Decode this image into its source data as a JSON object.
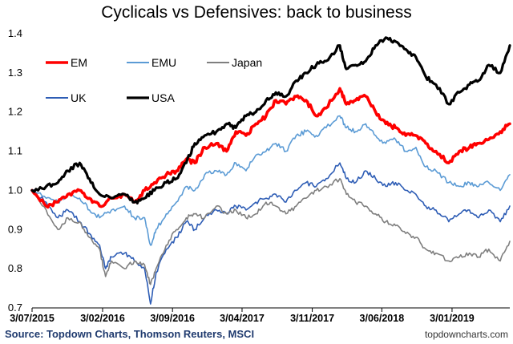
{
  "chart_data": {
    "type": "line",
    "title": "Cyclicals vs Defensives: back to business",
    "xlabel": "",
    "ylabel": "",
    "ylim": [
      0.7,
      1.4
    ],
    "yticks": [
      "0.7",
      "0.8",
      "0.9",
      "1.0",
      "1.1",
      "1.2",
      "1.3",
      "1.4"
    ],
    "xlim": [
      "2015-07-03",
      "2019-06-28"
    ],
    "xticks": [
      {
        "date": "2015-07-03",
        "label": "3/07/2015"
      },
      {
        "date": "2016-02-03",
        "label": "3/02/2016"
      },
      {
        "date": "2016-09-03",
        "label": "3/09/2016"
      },
      {
        "date": "2017-04-03",
        "label": "3/04/2017"
      },
      {
        "date": "2017-11-03",
        "label": "3/11/2017"
      },
      {
        "date": "2018-06-03",
        "label": "3/06/2018"
      },
      {
        "date": "2019-01-03",
        "label": "3/01/2019"
      }
    ],
    "grid": false,
    "legend_position": "top-left",
    "series": [
      {
        "name": "EM",
        "color": "#ff0000",
        "width": 3.6,
        "points": [
          [
            "2015-07-03",
            1.0
          ],
          [
            "2015-08-15",
            0.96
          ],
          [
            "2015-09-20",
            0.97
          ],
          [
            "2015-10-20",
            0.99
          ],
          [
            "2015-11-25",
            1.0
          ],
          [
            "2015-12-25",
            0.98
          ],
          [
            "2016-01-25",
            0.96
          ],
          [
            "2016-03-01",
            0.98
          ],
          [
            "2016-04-10",
            0.99
          ],
          [
            "2016-05-10",
            0.97
          ],
          [
            "2016-06-10",
            1.0
          ],
          [
            "2016-07-10",
            1.02
          ],
          [
            "2016-08-15",
            1.04
          ],
          [
            "2016-09-15",
            1.05
          ],
          [
            "2016-10-15",
            1.08
          ],
          [
            "2016-11-10",
            1.07
          ],
          [
            "2016-12-10",
            1.11
          ],
          [
            "2017-01-15",
            1.12
          ],
          [
            "2017-02-15",
            1.1
          ],
          [
            "2017-03-15",
            1.15
          ],
          [
            "2017-04-15",
            1.14
          ],
          [
            "2017-05-15",
            1.17
          ],
          [
            "2017-06-15",
            1.19
          ],
          [
            "2017-07-15",
            1.23
          ],
          [
            "2017-08-15",
            1.22
          ],
          [
            "2017-09-15",
            1.24
          ],
          [
            "2017-10-15",
            1.23
          ],
          [
            "2017-11-15",
            1.19
          ],
          [
            "2017-12-15",
            1.21
          ],
          [
            "2018-01-26",
            1.26
          ],
          [
            "2018-02-15",
            1.22
          ],
          [
            "2018-03-15",
            1.23
          ],
          [
            "2018-04-15",
            1.24
          ],
          [
            "2018-05-15",
            1.2
          ],
          [
            "2018-06-15",
            1.17
          ],
          [
            "2018-07-15",
            1.16
          ],
          [
            "2018-08-15",
            1.14
          ],
          [
            "2018-09-15",
            1.14
          ],
          [
            "2018-10-15",
            1.12
          ],
          [
            "2018-11-15",
            1.1
          ],
          [
            "2018-12-24",
            1.07
          ],
          [
            "2019-01-25",
            1.1
          ],
          [
            "2019-02-25",
            1.11
          ],
          [
            "2019-03-25",
            1.12
          ],
          [
            "2019-04-25",
            1.13
          ],
          [
            "2019-05-30",
            1.15
          ],
          [
            "2019-06-28",
            1.17
          ]
        ]
      },
      {
        "name": "EMU",
        "color": "#5b9bd5",
        "width": 1.6,
        "points": [
          [
            "2015-07-03",
            1.0
          ],
          [
            "2015-08-15",
            0.98
          ],
          [
            "2015-09-20",
            0.97
          ],
          [
            "2015-10-20",
            0.99
          ],
          [
            "2015-11-25",
            0.98
          ],
          [
            "2015-12-25",
            0.95
          ],
          [
            "2016-01-25",
            0.93
          ],
          [
            "2016-03-01",
            0.95
          ],
          [
            "2016-04-10",
            0.96
          ],
          [
            "2016-05-10",
            0.93
          ],
          [
            "2016-06-10",
            0.93
          ],
          [
            "2016-06-28",
            0.86
          ],
          [
            "2016-07-15",
            0.9
          ],
          [
            "2016-08-15",
            0.94
          ],
          [
            "2016-09-15",
            0.97
          ],
          [
            "2016-10-15",
            1.01
          ],
          [
            "2016-11-10",
            1.0
          ],
          [
            "2016-12-10",
            1.04
          ],
          [
            "2017-01-15",
            1.05
          ],
          [
            "2017-02-15",
            1.04
          ],
          [
            "2017-03-15",
            1.07
          ],
          [
            "2017-04-15",
            1.05
          ],
          [
            "2017-05-15",
            1.09
          ],
          [
            "2017-06-15",
            1.1
          ],
          [
            "2017-07-15",
            1.12
          ],
          [
            "2017-08-15",
            1.1
          ],
          [
            "2017-09-15",
            1.14
          ],
          [
            "2017-10-15",
            1.15
          ],
          [
            "2017-11-15",
            1.14
          ],
          [
            "2017-12-15",
            1.16
          ],
          [
            "2018-01-26",
            1.19
          ],
          [
            "2018-02-15",
            1.16
          ],
          [
            "2018-03-15",
            1.15
          ],
          [
            "2018-04-15",
            1.17
          ],
          [
            "2018-05-15",
            1.14
          ],
          [
            "2018-06-15",
            1.12
          ],
          [
            "2018-07-15",
            1.13
          ],
          [
            "2018-08-15",
            1.1
          ],
          [
            "2018-09-15",
            1.11
          ],
          [
            "2018-10-15",
            1.06
          ],
          [
            "2018-11-15",
            1.05
          ],
          [
            "2018-12-24",
            1.02
          ],
          [
            "2019-01-25",
            1.01
          ],
          [
            "2019-02-25",
            1.02
          ],
          [
            "2019-03-25",
            1.01
          ],
          [
            "2019-04-25",
            1.02
          ],
          [
            "2019-05-30",
            1.0
          ],
          [
            "2019-06-28",
            1.04
          ]
        ]
      },
      {
        "name": "Japan",
        "color": "#7f7f7f",
        "width": 1.6,
        "points": [
          [
            "2015-07-03",
            1.0
          ],
          [
            "2015-08-15",
            0.95
          ],
          [
            "2015-09-20",
            0.9
          ],
          [
            "2015-10-20",
            0.93
          ],
          [
            "2015-11-25",
            0.92
          ],
          [
            "2015-12-25",
            0.88
          ],
          [
            "2016-01-25",
            0.85
          ],
          [
            "2016-02-12",
            0.78
          ],
          [
            "2016-03-01",
            0.82
          ],
          [
            "2016-04-10",
            0.8
          ],
          [
            "2016-05-10",
            0.82
          ],
          [
            "2016-06-10",
            0.81
          ],
          [
            "2016-06-28",
            0.76
          ],
          [
            "2016-07-15",
            0.8
          ],
          [
            "2016-08-15",
            0.86
          ],
          [
            "2016-09-15",
            0.9
          ],
          [
            "2016-10-15",
            0.93
          ],
          [
            "2016-11-10",
            0.94
          ],
          [
            "2016-12-10",
            0.93
          ],
          [
            "2017-01-15",
            0.96
          ],
          [
            "2017-02-15",
            0.94
          ],
          [
            "2017-03-15",
            0.95
          ],
          [
            "2017-04-15",
            0.93
          ],
          [
            "2017-05-15",
            0.94
          ],
          [
            "2017-06-15",
            0.97
          ],
          [
            "2017-07-15",
            0.96
          ],
          [
            "2017-08-15",
            0.94
          ],
          [
            "2017-09-15",
            0.96
          ],
          [
            "2017-10-15",
            0.98
          ],
          [
            "2017-11-15",
            1.0
          ],
          [
            "2017-12-15",
            1.01
          ],
          [
            "2018-01-26",
            1.03
          ],
          [
            "2018-02-15",
            0.99
          ],
          [
            "2018-03-15",
            0.97
          ],
          [
            "2018-04-15",
            0.96
          ],
          [
            "2018-05-15",
            0.94
          ],
          [
            "2018-06-15",
            0.92
          ],
          [
            "2018-07-15",
            0.91
          ],
          [
            "2018-08-15",
            0.89
          ],
          [
            "2018-09-15",
            0.88
          ],
          [
            "2018-10-15",
            0.85
          ],
          [
            "2018-11-15",
            0.84
          ],
          [
            "2018-12-24",
            0.82
          ],
          [
            "2019-01-25",
            0.83
          ],
          [
            "2019-02-25",
            0.84
          ],
          [
            "2019-03-25",
            0.83
          ],
          [
            "2019-04-25",
            0.85
          ],
          [
            "2019-05-30",
            0.82
          ],
          [
            "2019-06-28",
            0.87
          ]
        ]
      },
      {
        "name": "UK",
        "color": "#2e5db5",
        "width": 1.6,
        "points": [
          [
            "2015-07-03",
            1.0
          ],
          [
            "2015-08-15",
            0.97
          ],
          [
            "2015-09-20",
            0.93
          ],
          [
            "2015-10-20",
            0.95
          ],
          [
            "2015-11-25",
            0.92
          ],
          [
            "2015-12-25",
            0.89
          ],
          [
            "2016-01-25",
            0.86
          ],
          [
            "2016-02-12",
            0.8
          ],
          [
            "2016-03-01",
            0.83
          ],
          [
            "2016-04-10",
            0.84
          ],
          [
            "2016-05-10",
            0.82
          ],
          [
            "2016-06-10",
            0.8
          ],
          [
            "2016-06-28",
            0.71
          ],
          [
            "2016-07-15",
            0.79
          ],
          [
            "2016-08-15",
            0.85
          ],
          [
            "2016-09-15",
            0.88
          ],
          [
            "2016-10-15",
            0.92
          ],
          [
            "2016-11-10",
            0.9
          ],
          [
            "2016-12-10",
            0.93
          ],
          [
            "2017-01-15",
            0.95
          ],
          [
            "2017-02-15",
            0.94
          ],
          [
            "2017-03-15",
            0.96
          ],
          [
            "2017-04-15",
            0.95
          ],
          [
            "2017-05-15",
            0.97
          ],
          [
            "2017-06-15",
            0.98
          ],
          [
            "2017-07-15",
            0.99
          ],
          [
            "2017-08-15",
            0.97
          ],
          [
            "2017-09-15",
            1.0
          ],
          [
            "2017-10-15",
            1.02
          ],
          [
            "2017-11-15",
            1.01
          ],
          [
            "2017-12-15",
            1.03
          ],
          [
            "2018-01-26",
            1.07
          ],
          [
            "2018-02-15",
            1.03
          ],
          [
            "2018-03-15",
            1.02
          ],
          [
            "2018-04-15",
            1.05
          ],
          [
            "2018-05-15",
            1.03
          ],
          [
            "2018-06-15",
            1.01
          ],
          [
            "2018-07-15",
            1.02
          ],
          [
            "2018-08-15",
            1.0
          ],
          [
            "2018-09-15",
            0.99
          ],
          [
            "2018-10-15",
            0.96
          ],
          [
            "2018-11-15",
            0.95
          ],
          [
            "2018-12-24",
            0.92
          ],
          [
            "2019-01-25",
            0.94
          ],
          [
            "2019-02-25",
            0.95
          ],
          [
            "2019-03-25",
            0.93
          ],
          [
            "2019-04-25",
            0.95
          ],
          [
            "2019-05-30",
            0.92
          ],
          [
            "2019-06-28",
            0.96
          ]
        ]
      },
      {
        "name": "USA",
        "color": "#000000",
        "width": 3.2,
        "points": [
          [
            "2015-07-03",
            1.0
          ],
          [
            "2015-08-15",
            1.01
          ],
          [
            "2015-09-20",
            1.02
          ],
          [
            "2015-10-20",
            1.05
          ],
          [
            "2015-11-25",
            1.07
          ],
          [
            "2015-12-25",
            1.03
          ],
          [
            "2016-01-25",
            0.99
          ],
          [
            "2016-03-01",
            0.98
          ],
          [
            "2016-04-10",
            0.99
          ],
          [
            "2016-05-10",
            0.97
          ],
          [
            "2016-06-10",
            0.98
          ],
          [
            "2016-07-10",
            1.0
          ],
          [
            "2016-08-15",
            1.02
          ],
          [
            "2016-09-15",
            1.03
          ],
          [
            "2016-10-15",
            1.07
          ],
          [
            "2016-11-10",
            1.12
          ],
          [
            "2016-12-10",
            1.14
          ],
          [
            "2017-01-15",
            1.15
          ],
          [
            "2017-02-15",
            1.17
          ],
          [
            "2017-03-15",
            1.16
          ],
          [
            "2017-04-15",
            1.19
          ],
          [
            "2017-05-15",
            1.2
          ],
          [
            "2017-06-15",
            1.23
          ],
          [
            "2017-07-15",
            1.25
          ],
          [
            "2017-08-15",
            1.24
          ],
          [
            "2017-09-15",
            1.28
          ],
          [
            "2017-10-15",
            1.3
          ],
          [
            "2017-11-15",
            1.32
          ],
          [
            "2017-12-15",
            1.33
          ],
          [
            "2018-01-26",
            1.37
          ],
          [
            "2018-02-15",
            1.31
          ],
          [
            "2018-03-15",
            1.32
          ],
          [
            "2018-04-15",
            1.33
          ],
          [
            "2018-05-15",
            1.37
          ],
          [
            "2018-06-15",
            1.39
          ],
          [
            "2018-07-15",
            1.38
          ],
          [
            "2018-08-15",
            1.36
          ],
          [
            "2018-09-15",
            1.34
          ],
          [
            "2018-10-15",
            1.29
          ],
          [
            "2018-11-15",
            1.27
          ],
          [
            "2018-12-24",
            1.22
          ],
          [
            "2019-01-25",
            1.25
          ],
          [
            "2019-02-25",
            1.27
          ],
          [
            "2019-03-25",
            1.28
          ],
          [
            "2019-04-25",
            1.32
          ],
          [
            "2019-05-30",
            1.3
          ],
          [
            "2019-06-28",
            1.37
          ]
        ]
      }
    ],
    "source": "Source: Topdown Charts, Thomson Reuters, MSCI",
    "credit": "topdowncharts.com"
  }
}
